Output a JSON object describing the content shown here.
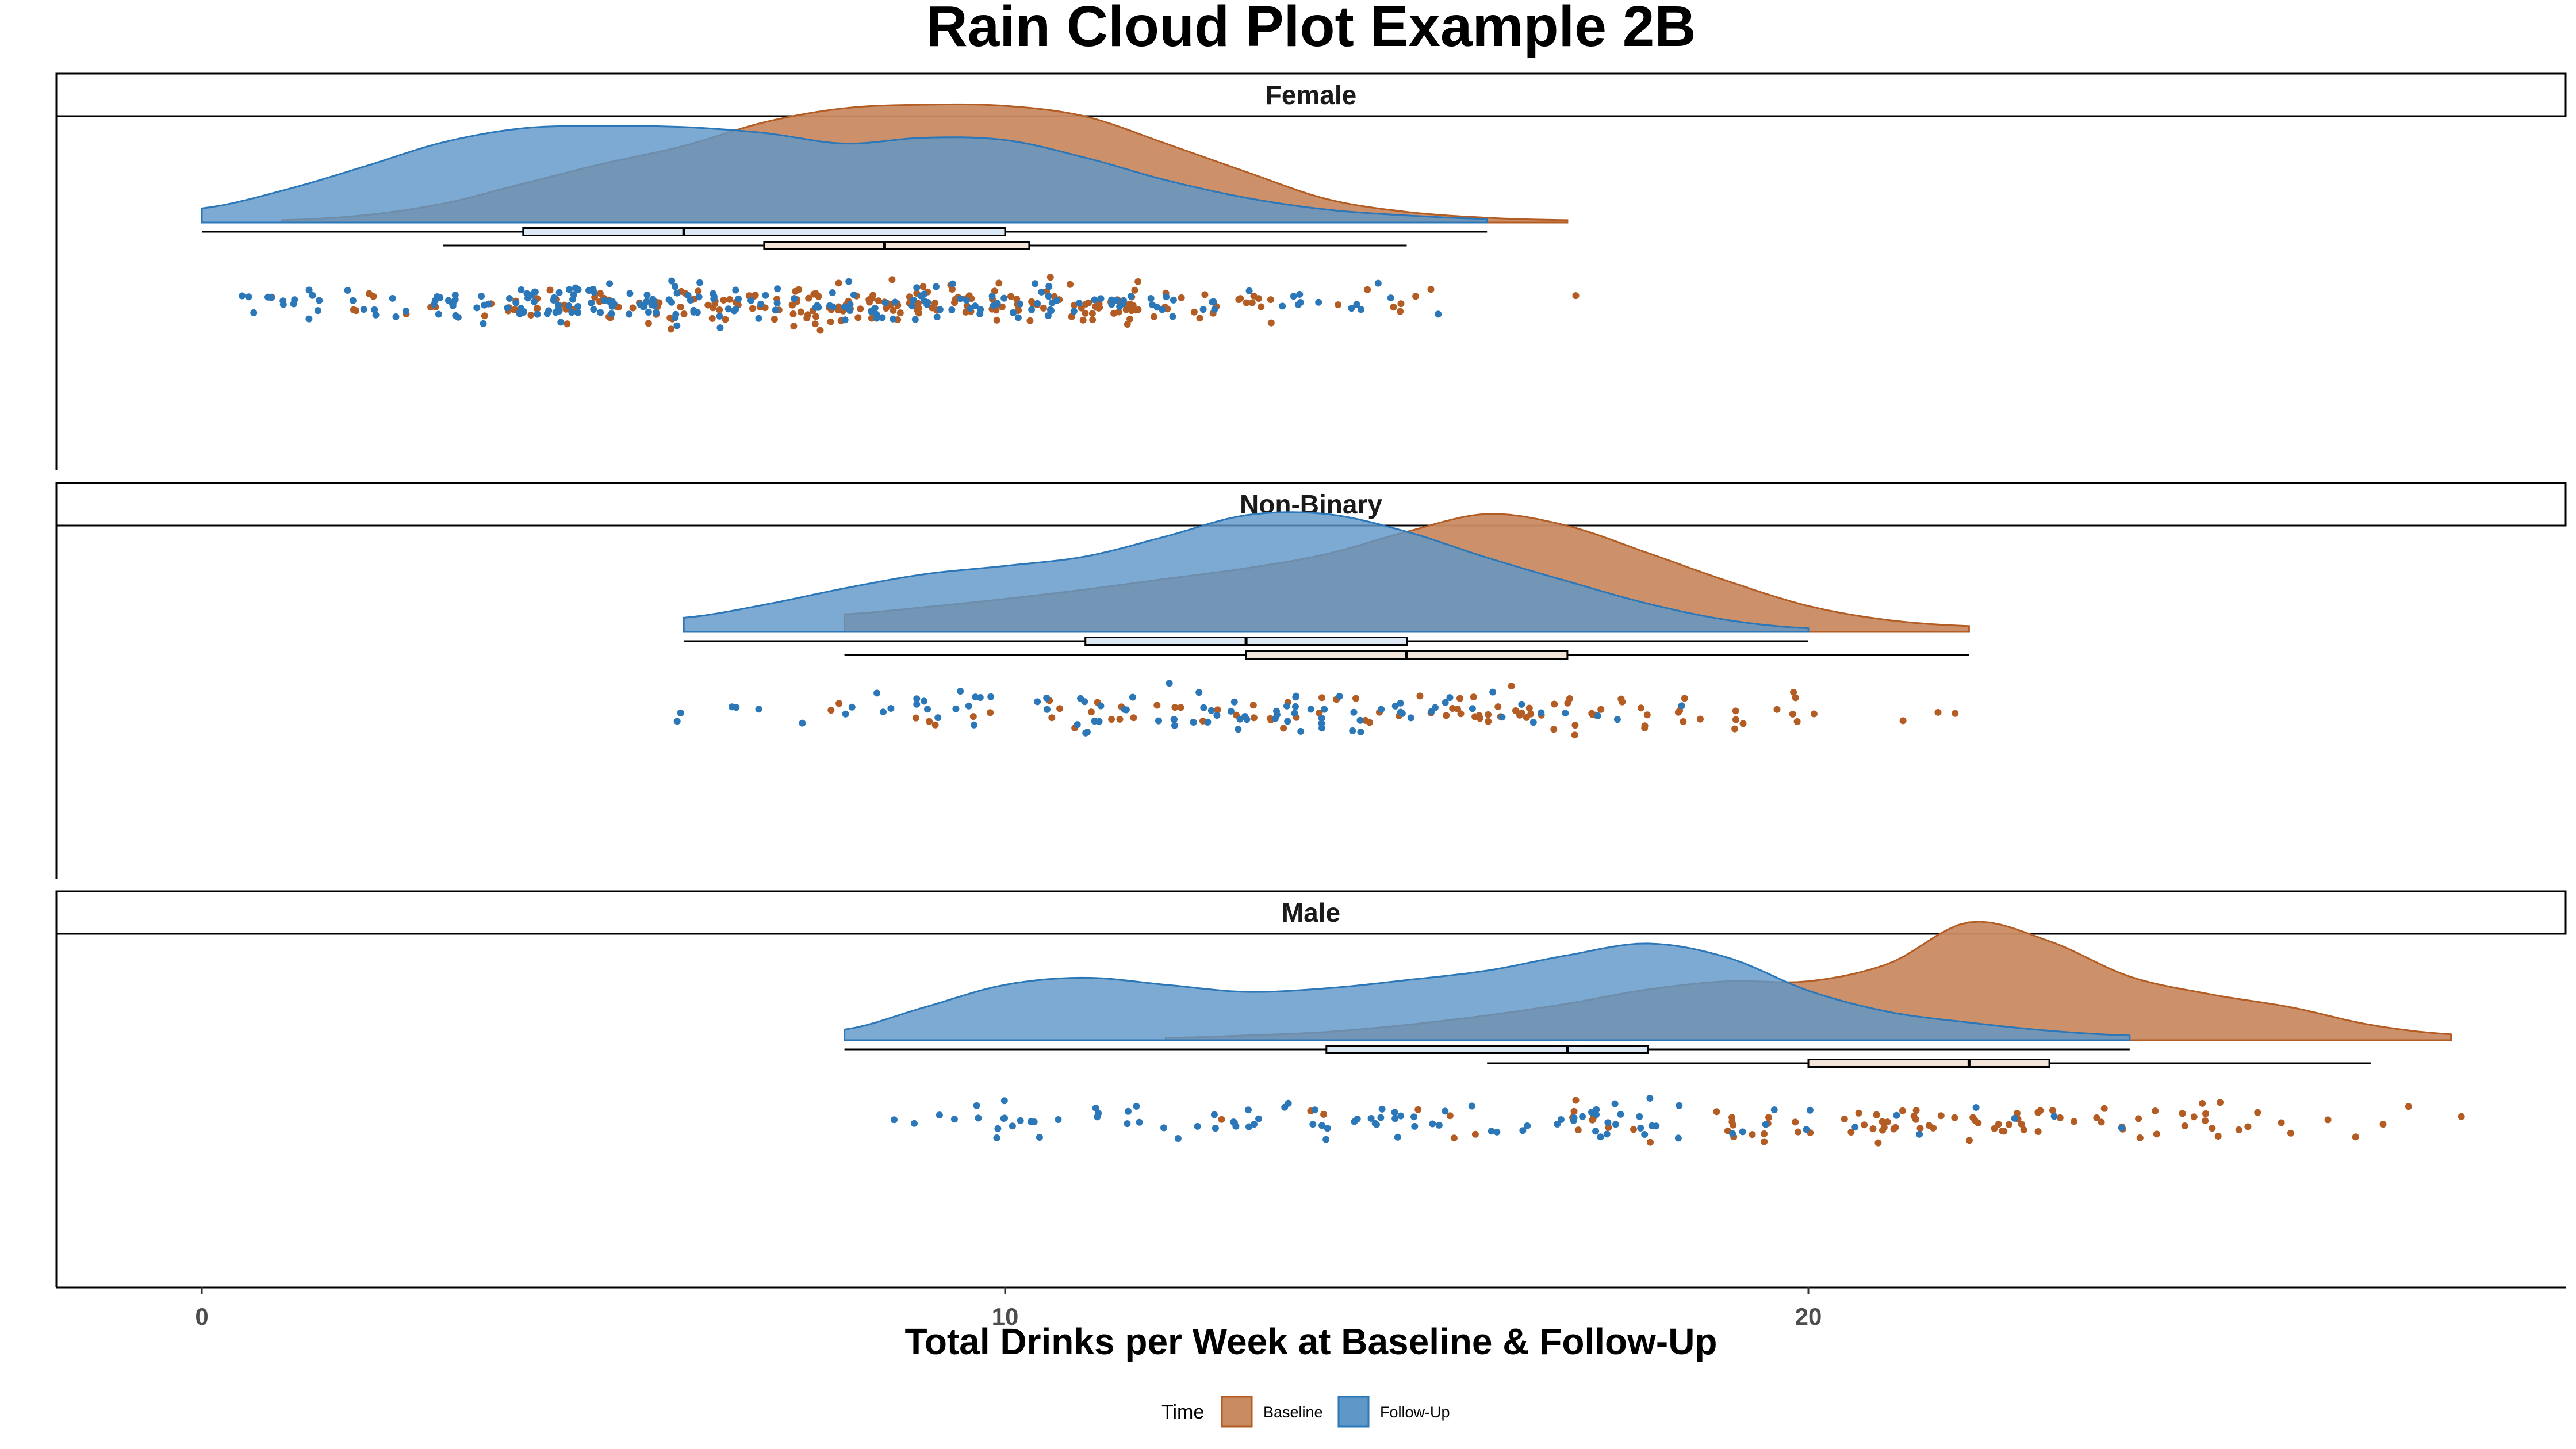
{
  "chart_data": {
    "type": "raincloud",
    "title": "Rain Cloud Plot Example 2B",
    "xlabel": "Total Drinks per Week at Baseline & Follow-Up",
    "ylabel": "",
    "xlim": [
      -1.8,
      29.4
    ],
    "x_ticks": [
      0,
      10,
      20
    ],
    "x_tick_labels": [
      "0",
      "10",
      "20"
    ],
    "grid": false,
    "legend": {
      "title": "Time",
      "position": "bottom",
      "entries": [
        "Baseline",
        "Follow-Up"
      ]
    },
    "colors": {
      "Baseline_fill": "#c98b62",
      "Baseline_line": "#b35d24",
      "Baseline_point": "#b35d24",
      "Follow-Up_fill": "#5f97c8",
      "Follow-Up_line": "#2b77b8",
      "Follow-Up_point": "#2b77b8"
    },
    "panels": [
      {
        "name": "Female",
        "series": [
          {
            "name": "Baseline",
            "range": [
              1,
              17
            ],
            "density": [
              [
                1,
                0.02
              ],
              [
                2,
                0.06
              ],
              [
                3,
                0.16
              ],
              [
                4,
                0.33
              ],
              [
                5,
                0.5
              ],
              [
                6,
                0.65
              ],
              [
                7,
                0.85
              ],
              [
                8,
                0.97
              ],
              [
                9,
                1.0
              ],
              [
                10,
                0.99
              ],
              [
                11,
                0.9
              ],
              [
                12,
                0.67
              ],
              [
                13,
                0.43
              ],
              [
                14,
                0.2
              ],
              [
                15,
                0.09
              ],
              [
                16,
                0.04
              ],
              [
                17,
                0.02
              ]
            ],
            "box": {
              "min": 3,
              "q1": 7,
              "median": 8.5,
              "q3": 10.3,
              "max": 15
            }
          },
          {
            "name": "Follow-Up",
            "range": [
              0,
              16
            ],
            "density": [
              [
                0,
                0.12
              ],
              [
                1,
                0.27
              ],
              [
                2,
                0.47
              ],
              [
                3,
                0.68
              ],
              [
                4,
                0.8
              ],
              [
                5,
                0.82
              ],
              [
                6,
                0.81
              ],
              [
                7,
                0.76
              ],
              [
                8,
                0.67
              ],
              [
                9,
                0.72
              ],
              [
                10,
                0.7
              ],
              [
                11,
                0.55
              ],
              [
                12,
                0.36
              ],
              [
                13,
                0.21
              ],
              [
                14,
                0.11
              ],
              [
                15,
                0.06
              ],
              [
                16,
                0.03
              ]
            ],
            "box": {
              "min": 0,
              "q1": 4,
              "median": 6,
              "q3": 10,
              "max": 16
            }
          }
        ]
      },
      {
        "name": "Non-Binary",
        "series": [
          {
            "name": "Baseline",
            "range": [
              8,
              22
            ],
            "density": [
              [
                8,
                0.15
              ],
              [
                9,
                0.21
              ],
              [
                10,
                0.28
              ],
              [
                11,
                0.36
              ],
              [
                12,
                0.45
              ],
              [
                13,
                0.54
              ],
              [
                14,
                0.66
              ],
              [
                15,
                0.85
              ],
              [
                16,
                1.0
              ],
              [
                17,
                0.9
              ],
              [
                18,
                0.67
              ],
              [
                19,
                0.43
              ],
              [
                20,
                0.22
              ],
              [
                21,
                0.1
              ],
              [
                22,
                0.05
              ]
            ],
            "box": {
              "min": 8,
              "q1": 13,
              "median": 15,
              "q3": 17,
              "max": 22
            }
          },
          {
            "name": "Follow-Up",
            "range": [
              6,
              20
            ],
            "density": [
              [
                6,
                0.12
              ],
              [
                7,
                0.23
              ],
              [
                8,
                0.37
              ],
              [
                9,
                0.49
              ],
              [
                10,
                0.56
              ],
              [
                11,
                0.64
              ],
              [
                12,
                0.81
              ],
              [
                13,
                0.99
              ],
              [
                14,
                1.0
              ],
              [
                15,
                0.85
              ],
              [
                16,
                0.63
              ],
              [
                17,
                0.43
              ],
              [
                18,
                0.24
              ],
              [
                19,
                0.1
              ],
              [
                20,
                0.03
              ]
            ],
            "box": {
              "min": 6,
              "q1": 11,
              "median": 13,
              "q3": 15,
              "max": 20
            }
          }
        ]
      },
      {
        "name": "Male",
        "series": [
          {
            "name": "Baseline",
            "range": [
              12,
              28
            ],
            "density": [
              [
                12,
                0.02
              ],
              [
                13,
                0.04
              ],
              [
                14,
                0.07
              ],
              [
                15,
                0.13
              ],
              [
                16,
                0.21
              ],
              [
                17,
                0.31
              ],
              [
                18,
                0.43
              ],
              [
                19,
                0.5
              ],
              [
                20,
                0.5
              ],
              [
                21,
                0.65
              ],
              [
                22,
                1.0
              ],
              [
                23,
                0.84
              ],
              [
                24,
                0.54
              ],
              [
                25,
                0.39
              ],
              [
                26,
                0.28
              ],
              [
                27,
                0.13
              ],
              [
                28,
                0.05
              ]
            ],
            "box": {
              "min": 16,
              "q1": 20,
              "median": 22,
              "q3": 23,
              "max": 27
            }
          },
          {
            "name": "Follow-Up",
            "range": [
              8,
              24
            ],
            "density": [
              [
                8,
                0.09
              ],
              [
                9,
                0.28
              ],
              [
                10,
                0.47
              ],
              [
                11,
                0.53
              ],
              [
                12,
                0.47
              ],
              [
                13,
                0.41
              ],
              [
                14,
                0.44
              ],
              [
                15,
                0.51
              ],
              [
                16,
                0.59
              ],
              [
                17,
                0.72
              ],
              [
                18,
                0.82
              ],
              [
                19,
                0.7
              ],
              [
                20,
                0.42
              ],
              [
                21,
                0.24
              ],
              [
                22,
                0.15
              ],
              [
                23,
                0.08
              ],
              [
                24,
                0.04
              ]
            ],
            "box": {
              "min": 8,
              "q1": 14,
              "median": 17,
              "q3": 18,
              "max": 24
            }
          }
        ]
      }
    ]
  }
}
